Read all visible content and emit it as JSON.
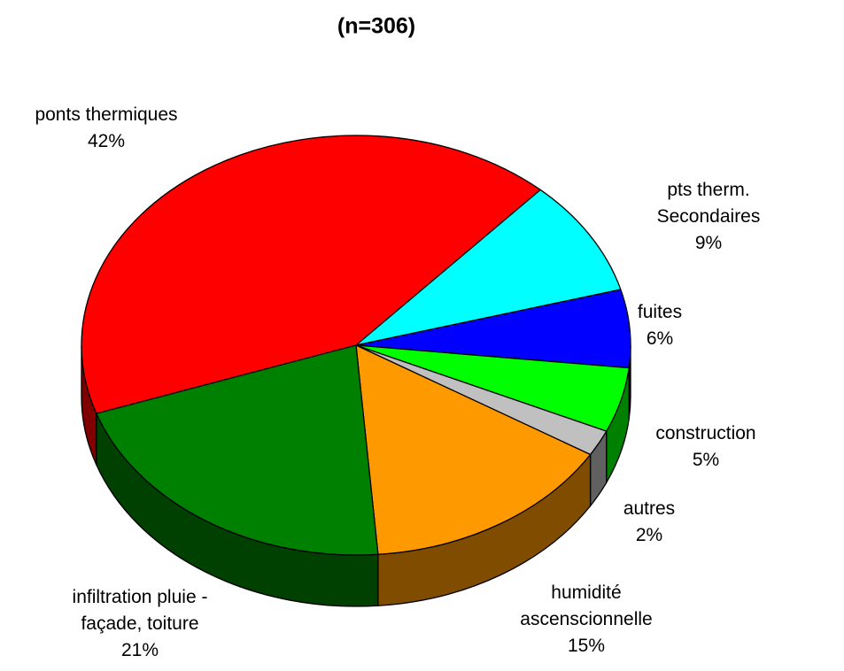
{
  "chart_data": {
    "type": "pie3d",
    "title": "(n=306)",
    "categories": [
      "ponts thermiques",
      "pts therm. Secondaires",
      "fuites",
      "construction",
      "autres",
      "humidité\nascenscionnelle",
      "infiltration pluie -\nfaçade, toiture"
    ],
    "values": [
      42,
      9,
      6,
      5,
      2,
      15,
      21
    ],
    "value_labels": [
      "42%",
      "9%",
      "6%",
      "5%",
      "2%",
      "15%",
      "21%"
    ],
    "colors": [
      "#ff0000",
      "#00ffff",
      "#0000ff",
      "#00ff00",
      "#c0c0c0",
      "#ff9900",
      "#008000"
    ],
    "side_colors": [
      "#800000",
      "#008080",
      "#000080",
      "#008000",
      "#606060",
      "#804c00",
      "#004000"
    ]
  }
}
